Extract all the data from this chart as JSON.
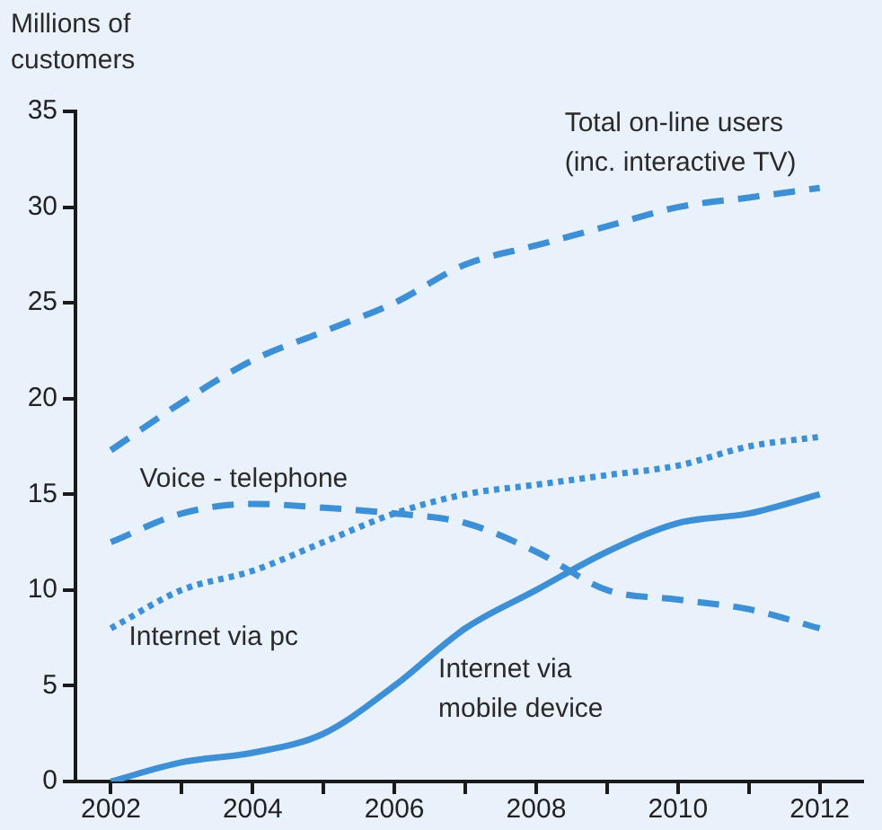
{
  "chart_data": {
    "type": "line",
    "ylabel": "Millions of customers",
    "x": [
      2002,
      2003,
      2004,
      2005,
      2006,
      2007,
      2008,
      2009,
      2010,
      2011,
      2012
    ],
    "xlim": [
      2001.5,
      2012.6
    ],
    "xticks": [
      2002,
      {
        "value": 2003,
        "label": null
      },
      2004,
      {
        "value": 2005,
        "label": null
      },
      2006,
      {
        "value": 2007,
        "label": null
      },
      2008,
      {
        "value": 2009,
        "label": null
      },
      2010,
      {
        "value": 2011,
        "label": null
      },
      2012
    ],
    "ylim": [
      0,
      35
    ],
    "yticks": [
      0,
      5,
      10,
      15,
      20,
      25,
      30,
      35
    ],
    "grid": false,
    "legend": false,
    "marker": "none",
    "series": [
      {
        "name": "Total on-line users (inc. interactive TV)",
        "color": "#3d8fd6",
        "line_style": "dashed",
        "values": [
          17.3,
          19.8,
          22,
          23.5,
          25,
          27,
          28,
          29,
          30,
          30.5,
          31
        ]
      },
      {
        "name": "Voice - telephone",
        "color": "#3d8fd6",
        "line_style": "dashed",
        "values": [
          12.5,
          14,
          14.5,
          14.3,
          14,
          13.5,
          12,
          10,
          9.5,
          9,
          8
        ]
      },
      {
        "name": "Internet via pc",
        "color": "#3d8fd6",
        "line_style": "dotted",
        "values": [
          8,
          10,
          11,
          12.5,
          14,
          15,
          15.5,
          16,
          16.5,
          17.5,
          18
        ]
      },
      {
        "name": "Internet via mobile device",
        "color": "#3d8fd6",
        "line_style": "solid",
        "values": [
          0,
          1,
          1.5,
          2.5,
          5,
          8,
          10,
          12,
          13.5,
          14,
          15
        ]
      }
    ]
  }
}
